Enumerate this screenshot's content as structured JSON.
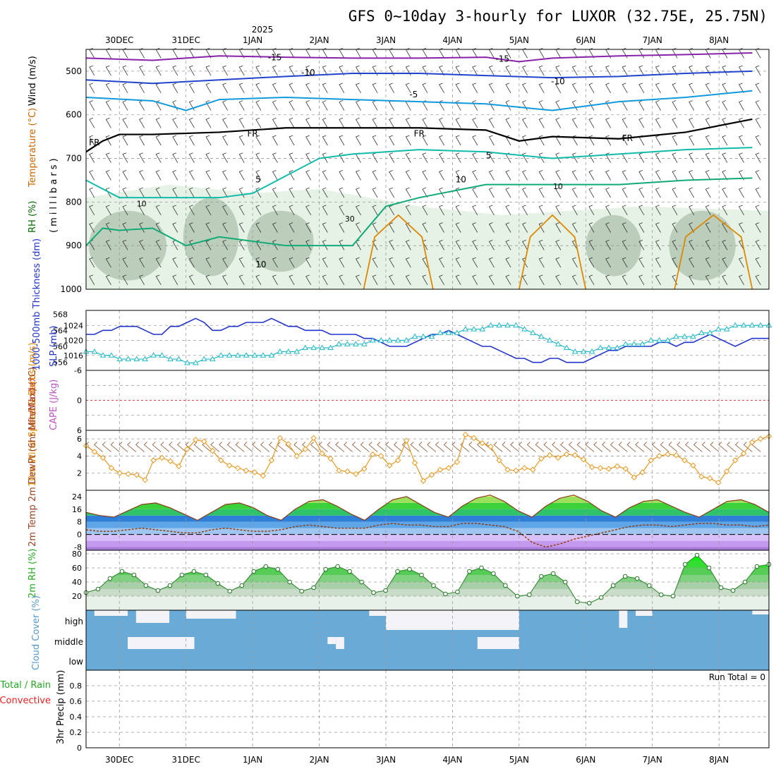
{
  "title": "GFS 0~10day 3-hourly for LUXOR (32.75E, 25.75N)",
  "top_axis": {
    "year_label": "2025",
    "dates": [
      "30DEC",
      "31DEC",
      "1JAN",
      "2JAN",
      "3JAN",
      "4JAN",
      "5JAN",
      "6JAN",
      "7JAN",
      "8JAN"
    ]
  },
  "bottom_axis": {
    "dates": [
      "30DEC",
      "31DEC",
      "1JAN",
      "2JAN",
      "3JAN",
      "4JAN",
      "5JAN",
      "6JAN",
      "7JAN",
      "8JAN"
    ]
  },
  "colors": {
    "t_minus15": "#8822aa",
    "t_minus10": "#2244cc",
    "t_minus5": "#1199dd",
    "t_fr": "#000000",
    "t_5": "#11bbaa",
    "t_10": "#11aa77",
    "t_warm": "#dd8800",
    "t_hot": "#ee2222",
    "thickness": "#2233cc",
    "slp": "#22b8c8",
    "wind10": "#e89922",
    "barb10": "#996644",
    "rh": "#44cc44",
    "cloud": "#6aaad6",
    "cloud_gap": "#f4f4f8",
    "dewpt": "#993300"
  },
  "chart_data": [
    {
      "panel": "sounding",
      "type": "line",
      "ylabel_parts": [
        "RH (%)",
        "Temperature (°C)",
        "Wind (m/s)"
      ],
      "ylabel_units": "(millibars)",
      "y_ticks": [
        500,
        600,
        700,
        800,
        900,
        1000
      ],
      "ylim": [
        450,
        1000
      ],
      "x_hours_range": [
        0,
        240
      ],
      "isotherm_labels": [
        {
          "text": "-15",
          "series": "t_minus15"
        },
        {
          "text": "-15",
          "series": "t_minus15"
        },
        {
          "text": "-10",
          "series": "t_minus10"
        },
        {
          "text": "-10",
          "series": "t_minus10"
        },
        {
          "text": "-5",
          "series": "t_minus5"
        },
        {
          "text": "FR",
          "series": "t_fr"
        },
        {
          "text": "FR",
          "series": "t_fr"
        },
        {
          "text": "FR",
          "series": "t_fr"
        },
        {
          "text": "FR",
          "series": "t_fr"
        },
        {
          "text": "5",
          "series": "t_5"
        },
        {
          "text": "5",
          "series": "t_5"
        },
        {
          "text": "10",
          "series": "t_10"
        },
        {
          "text": "10",
          "series": "t_10"
        }
      ],
      "rh_labels": [
        "30",
        "10",
        "10"
      ],
      "series": [
        {
          "id": "t_minus15",
          "x": [
            0,
            24,
            48,
            72,
            96,
            120,
            144,
            156,
            168,
            192,
            216,
            240
          ],
          "y": [
            470,
            475,
            465,
            468,
            470,
            470,
            468,
            478,
            470,
            465,
            462,
            458
          ]
        },
        {
          "id": "t_minus10",
          "x": [
            0,
            24,
            48,
            72,
            96,
            120,
            144,
            168,
            192,
            216,
            240
          ],
          "y": [
            520,
            528,
            520,
            512,
            505,
            505,
            510,
            515,
            512,
            505,
            500
          ]
        },
        {
          "id": "t_minus5",
          "x": [
            0,
            24,
            36,
            48,
            72,
            96,
            120,
            144,
            168,
            180,
            192,
            216,
            240
          ],
          "y": [
            560,
            568,
            590,
            565,
            560,
            565,
            570,
            575,
            590,
            580,
            570,
            560,
            545
          ]
        },
        {
          "id": "t_fr",
          "x": [
            0,
            6,
            12,
            24,
            48,
            72,
            96,
            120,
            144,
            156,
            168,
            192,
            216,
            240
          ],
          "y": [
            685,
            660,
            645,
            645,
            640,
            630,
            630,
            630,
            635,
            660,
            650,
            655,
            640,
            610
          ]
        },
        {
          "id": "t_5",
          "x": [
            0,
            12,
            24,
            48,
            60,
            72,
            84,
            96,
            120,
            144,
            168,
            192,
            216,
            240
          ],
          "y": [
            750,
            790,
            790,
            790,
            780,
            740,
            700,
            690,
            680,
            685,
            700,
            690,
            680,
            675
          ]
        },
        {
          "id": "t_10",
          "x": [
            0,
            6,
            12,
            24,
            36,
            48,
            60,
            72,
            96,
            108,
            120,
            144,
            168,
            192,
            216,
            240
          ],
          "y": [
            900,
            860,
            865,
            860,
            900,
            880,
            890,
            900,
            900,
            810,
            790,
            760,
            760,
            760,
            750,
            745
          ]
        }
      ]
    },
    {
      "panel": "thickness_slp",
      "type": "line",
      "ylabel_left": "1000-500mb Thickness (dm)",
      "ylabel_right": "SLP (mb)",
      "left_ticks": [
        556,
        560,
        564,
        568
      ],
      "right_ticks": [
        1016,
        1020,
        1024
      ],
      "series": [
        {
          "id": "thickness",
          "name": "1000-500mb Thickness (dm)",
          "ylim": [
            554,
            569
          ],
          "values": [
            563,
            563,
            564,
            564,
            565,
            565,
            565,
            564,
            563,
            563,
            565,
            565,
            566,
            567,
            566,
            564,
            564,
            565,
            565,
            566,
            566,
            566,
            567,
            566,
            565,
            565,
            564,
            564,
            564,
            563,
            563,
            563,
            563,
            562,
            562,
            561,
            560,
            560,
            560,
            561,
            562,
            563,
            563,
            564,
            563,
            562,
            561,
            560,
            560,
            559,
            558,
            557,
            557,
            556,
            556,
            557,
            557,
            556,
            556,
            556,
            557,
            558,
            559,
            559,
            560,
            560,
            560,
            560,
            561,
            561,
            560,
            561,
            561,
            562,
            563,
            562,
            561,
            560,
            561,
            562,
            562,
            562
          ]
        },
        {
          "id": "slp",
          "name": "SLP (mb)",
          "ylim": [
            1012,
            1028
          ],
          "values": [
            1017,
            1017,
            1016,
            1016,
            1015,
            1015,
            1015,
            1015,
            1016,
            1016,
            1015,
            1015,
            1014,
            1014,
            1015,
            1015,
            1016,
            1016,
            1016,
            1016,
            1016,
            1016,
            1016,
            1017,
            1017,
            1017,
            1018,
            1018,
            1018,
            1018,
            1019,
            1019,
            1019,
            1019,
            1020,
            1020,
            1020,
            1020,
            1020,
            1021,
            1021,
            1021,
            1022,
            1022,
            1022,
            1023,
            1023,
            1023,
            1024,
            1024,
            1024,
            1024,
            1023,
            1022,
            1021,
            1020,
            1019,
            1018,
            1017,
            1017,
            1017,
            1018,
            1018,
            1018,
            1019,
            1019,
            1019,
            1020,
            1020,
            1020,
            1021,
            1021,
            1021,
            1022,
            1022,
            1023,
            1023,
            1024,
            1024,
            1024,
            1024,
            1024
          ]
        }
      ]
    },
    {
      "panel": "stability",
      "type": "line",
      "ylabel_left": "Lifted Index",
      "ylabel_right": "CAPE (J/kg)",
      "ticks": [
        6,
        0,
        -6
      ],
      "tick_labels": [
        "-6",
        "0",
        "6"
      ],
      "ylim": [
        -6,
        6
      ],
      "zero_line": 0
    },
    {
      "panel": "wind10",
      "type": "line",
      "ylabel": "10m Wind Speed & Barbs (m/s)",
      "y_ticks": [
        2,
        4,
        6
      ],
      "ylim": [
        0,
        7
      ],
      "series": [
        {
          "id": "wind10",
          "name": "10m Wind Speed",
          "values": [
            5.2,
            4.5,
            3.8,
            2.6,
            2.0,
            1.9,
            1.8,
            1.2,
            3.5,
            3.8,
            3.4,
            2.8,
            4.8,
            5.9,
            5.7,
            4.6,
            3.5,
            2.9,
            2.6,
            2.3,
            2.1,
            1.7,
            3.5,
            6.1,
            5.4,
            4.0,
            4.8,
            6.1,
            4.3,
            3.7,
            2.3,
            2.2,
            1.9,
            2.5,
            4.2,
            4.0,
            2.9,
            3.5,
            5.8,
            3.2,
            1.1,
            1.8,
            2.4,
            2.6,
            3.3,
            6.5,
            6.1,
            5.5,
            5.1,
            3.5,
            2.4,
            2.3,
            2.6,
            2.4,
            3.7,
            4.1,
            3.8,
            4.2,
            4.1,
            3.6,
            2.7,
            2.6,
            2.5,
            2.8,
            2.5,
            1.5,
            2.1,
            3.5,
            4.0,
            4.2,
            4.1,
            3.5,
            2.9,
            1.6,
            1.4,
            0.9,
            2.2,
            3.5,
            4.3,
            5.6,
            6.0,
            6.3
          ]
        }
      ]
    },
    {
      "panel": "temp2m",
      "type": "area",
      "ylabel": "2m Temp 2m DewPt (6hr Min/Max) (°C)",
      "y_ticks": [
        -8,
        0,
        8,
        16,
        24
      ],
      "ylim": [
        -10,
        28
      ],
      "series": [
        {
          "id": "temp",
          "name": "2m Temp",
          "values": [
            14,
            12,
            11,
            15,
            19,
            20,
            17,
            13,
            9,
            14,
            19,
            20,
            17,
            12,
            9,
            16,
            21,
            22,
            18,
            13,
            9,
            16,
            22,
            24,
            19,
            14,
            11,
            18,
            23,
            25,
            21,
            15,
            11,
            18,
            23,
            25,
            21,
            15,
            11,
            17,
            21,
            22,
            18,
            14,
            11,
            16,
            21,
            22,
            19,
            14
          ]
        },
        {
          "id": "dewpt",
          "name": "2m DewPt",
          "values": [
            3,
            2,
            2,
            3,
            4,
            3,
            2,
            1,
            1,
            3,
            4,
            3,
            2,
            2,
            3,
            5,
            6,
            5,
            4,
            4,
            4,
            6,
            7,
            6,
            6,
            5,
            5,
            7,
            7,
            6,
            5,
            2,
            -5,
            -8,
            -6,
            -3,
            -1,
            1,
            3,
            5,
            6,
            6,
            5,
            6,
            7,
            7,
            6,
            6,
            5,
            6
          ]
        }
      ]
    },
    {
      "panel": "rh2m",
      "type": "area",
      "ylabel": "2m RH (%)",
      "y_ticks": [
        20,
        40,
        60,
        80
      ],
      "ylim": [
        0,
        85
      ],
      "series": [
        {
          "id": "rh",
          "name": "2m RH",
          "values": [
            25,
            30,
            45,
            55,
            50,
            35,
            28,
            35,
            50,
            55,
            50,
            38,
            27,
            35,
            55,
            62,
            58,
            40,
            27,
            32,
            58,
            62,
            55,
            40,
            25,
            28,
            55,
            58,
            50,
            35,
            23,
            26,
            55,
            60,
            52,
            35,
            20,
            22,
            48,
            52,
            40,
            12,
            10,
            18,
            35,
            48,
            45,
            35,
            22,
            20,
            65,
            78,
            60,
            32,
            28,
            40,
            62,
            65
          ]
        }
      ]
    },
    {
      "panel": "cloud",
      "type": "area",
      "ylabel": "Cloud Cover (%)",
      "level_labels": [
        "high",
        "middle",
        "low"
      ]
    },
    {
      "panel": "precip",
      "type": "bar",
      "ylabel": "3hr Precip (mm)",
      "legend_left": [
        "Total / Rain",
        "Convective"
      ],
      "run_total": "Run Total = 0",
      "y_ticks": [
        0,
        0.2,
        0.4,
        0.6,
        0.8
      ],
      "tick_labels": [
        "0",
        "0.2",
        "0.4",
        "0.6",
        "0.8"
      ],
      "ylim": [
        0,
        1
      ],
      "values": []
    }
  ]
}
